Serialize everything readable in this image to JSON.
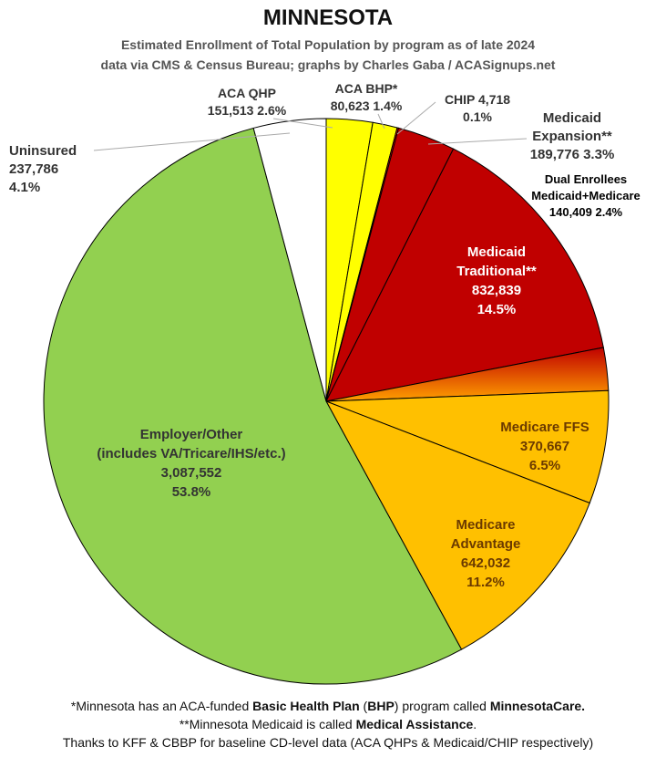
{
  "header": {
    "title": "MINNESOTA",
    "subtitle_line1": "Estimated Enrollment of Total Population by program as of late 2024",
    "subtitle_line2": "data via CMS & Census Bureau; graphs by Charles Gaba / ACASignups.net"
  },
  "chart_data": {
    "type": "pie",
    "title": "MINNESOTA",
    "start_angle_deg": 0,
    "direction": "clockwise",
    "slices": [
      {
        "label": "ACA QHP",
        "value": 151513,
        "percent": "2.6%",
        "value_text": "151,513",
        "color": "#ffff00"
      },
      {
        "label": "ACA BHP*",
        "value": 80623,
        "percent": "1.4%",
        "value_text": "80,623",
        "color": "#ffff00"
      },
      {
        "label": "CHIP",
        "value": 4718,
        "percent": "0.1%",
        "value_text": "4,718",
        "color": "#ff0000"
      },
      {
        "label": "Medicaid Expansion**",
        "value": 189776,
        "percent": "3.3%",
        "value_text": "189,776",
        "color": "#c00000"
      },
      {
        "label": "Medicaid Traditional**",
        "value": 832839,
        "percent": "14.5%",
        "value_text": "832,839",
        "color": "#c00000"
      },
      {
        "label": "Dual Enrollees Medicaid+Medicare",
        "value": 140409,
        "percent": "2.4%",
        "value_text": "140,409",
        "color": "#e06000"
      },
      {
        "label": "Medicare FFS",
        "value": 370667,
        "percent": "6.5%",
        "value_text": "370,667",
        "color": "#ffc000"
      },
      {
        "label": "Medicare Advantage",
        "value": 642032,
        "percent": "11.2%",
        "value_text": "642,032",
        "color": "#ffc000"
      },
      {
        "label": "Employer/Other (includes VA/Tricare/IHS/etc.)",
        "value": 3087552,
        "percent": "53.8%",
        "value_text": "3,087,552",
        "color": "#92d050"
      },
      {
        "label": "Uninsured",
        "value": 237786,
        "percent": "4.1%",
        "value_text": "237,786",
        "color": "#ffffff"
      }
    ]
  },
  "labels": {
    "aca_qhp": {
      "line1": "ACA QHP",
      "line2": "151,513 2.6%"
    },
    "aca_bhp": {
      "line1": "ACA BHP*",
      "line2": "80,623 1.4%"
    },
    "chip": {
      "line1": "CHIP 4,718",
      "line2": "0.1%"
    },
    "medicaid_expansion": {
      "line1": "Medicaid",
      "line2": "Expansion**",
      "line3": "189,776 3.3%"
    },
    "dual": {
      "line1": "Dual Enrollees",
      "line2": "Medicaid+Medicare",
      "line3": "140,409 2.4%"
    },
    "medicaid_traditional": {
      "line1": "Medicaid",
      "line2": "Traditional**",
      "line3": "832,839",
      "line4": "14.5%"
    },
    "medicare_ffs": {
      "line1": "Medicare FFS",
      "line2": "370,667",
      "line3": "6.5%"
    },
    "medicare_advantage": {
      "line1": "Medicare",
      "line2": "Advantage",
      "line3": "642,032",
      "line4": "11.2%"
    },
    "employer": {
      "line1": "Employer/Other",
      "line2": "(includes VA/Tricare/IHS/etc.)",
      "line3": "3,087,552",
      "line4": "53.8%"
    },
    "uninsured": {
      "line1": "Uninsured",
      "line2": "237,786",
      "line3": "4.1%"
    }
  },
  "footnotes": {
    "line1_a": "*Minnesota has an ACA-funded ",
    "line1_b": "Basic Health Plan",
    "line1_c": " (",
    "line1_d": "BHP",
    "line1_e": ") program called ",
    "line1_f": "MinnesotaCare.",
    "line2_a": "**Minnesota Medicaid is called ",
    "line2_b": "Medical Assistance",
    "line2_c": ".",
    "line3": "Thanks to KFF & CBBP for baseline CD-level data (ACA QHPs & Medicaid/CHIP respectively)"
  }
}
